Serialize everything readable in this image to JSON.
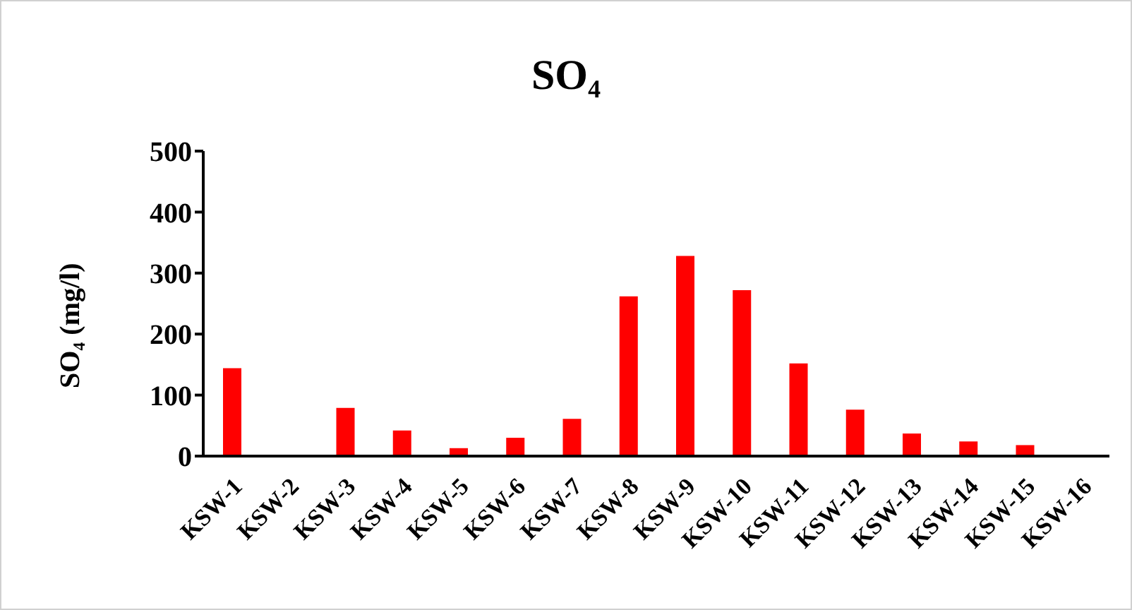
{
  "chart_data": {
    "type": "bar",
    "title": "SO₄",
    "ylabel": "SO₄ (mg/l)",
    "categories": [
      "KSW-1",
      "KSW-2",
      "KSW-3",
      "KSW-4",
      "KSW-5",
      "KSW-6",
      "KSW-7",
      "KSW-8",
      "KSW-9",
      "KSW-10",
      "KSW-11",
      "KSW-12",
      "KSW-13",
      "KSW-14",
      "KSW-15",
      "KSW-16"
    ],
    "values": [
      144,
      null,
      79,
      42,
      13,
      30,
      61,
      262,
      328,
      272,
      152,
      76,
      37,
      24,
      18,
      null
    ],
    "color": "#ff0000",
    "ylim": [
      0,
      500
    ],
    "yticks": [
      0,
      100,
      200,
      300,
      400,
      500
    ],
    "grid": false,
    "legend": false
  }
}
